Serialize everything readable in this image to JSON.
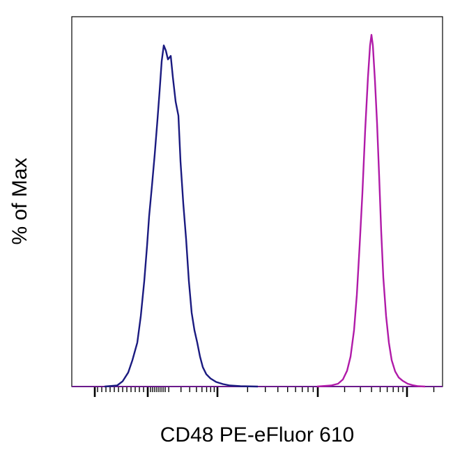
{
  "chart_data": {
    "type": "line",
    "title": "",
    "xlabel": "CD48 PE-eFluor 610",
    "ylabel": "% of Max",
    "x_scale": "biexponential",
    "x_ticks_labeled": false,
    "y_ticks_labeled": false,
    "grid": false,
    "legend": "none",
    "series": [
      {
        "color": "#1a1a80",
        "points": [
          [
            150,
            0
          ],
          [
            168,
            0.3
          ],
          [
            176,
            1.5
          ],
          [
            184,
            4
          ],
          [
            190,
            7.5
          ],
          [
            197,
            12.5
          ],
          [
            202,
            20
          ],
          [
            207,
            30
          ],
          [
            211,
            40
          ],
          [
            214,
            48.5
          ],
          [
            218,
            57
          ],
          [
            222,
            66
          ],
          [
            226,
            76
          ],
          [
            229,
            84
          ],
          [
            232,
            92.5
          ],
          [
            235,
            97
          ],
          [
            238,
            95.5
          ],
          [
            241,
            93
          ],
          [
            245,
            94
          ],
          [
            248,
            88
          ],
          [
            252,
            81
          ],
          [
            256,
            77
          ],
          [
            259,
            64
          ],
          [
            263,
            52
          ],
          [
            267,
            42
          ],
          [
            271,
            30
          ],
          [
            275,
            21
          ],
          [
            279,
            16
          ],
          [
            283,
            12.5
          ],
          [
            287,
            8.5
          ],
          [
            291,
            5.5
          ],
          [
            296,
            3.5
          ],
          [
            302,
            2.3
          ],
          [
            310,
            1.3
          ],
          [
            320,
            0.7
          ],
          [
            330,
            0.3
          ],
          [
            345,
            0.1
          ],
          [
            370,
            0
          ]
        ]
      },
      {
        "color": "#b01aa8",
        "points": [
          [
            455,
            0
          ],
          [
            475,
            0.3
          ],
          [
            485,
            0.8
          ],
          [
            492,
            2
          ],
          [
            498,
            4.5
          ],
          [
            503,
            8.5
          ],
          [
            508,
            16
          ],
          [
            512,
            26
          ],
          [
            516,
            40
          ],
          [
            520,
            55
          ],
          [
            524,
            73
          ],
          [
            528,
            88
          ],
          [
            531,
            97
          ],
          [
            533,
            100
          ],
          [
            535,
            97
          ],
          [
            538,
            87
          ],
          [
            541,
            75
          ],
          [
            544,
            60
          ],
          [
            547,
            44
          ],
          [
            550,
            31
          ],
          [
            554,
            20
          ],
          [
            558,
            12.5
          ],
          [
            562,
            7.5
          ],
          [
            567,
            4.3
          ],
          [
            572,
            2.6
          ],
          [
            578,
            1.6
          ],
          [
            585,
            0.8
          ],
          [
            592,
            0.4
          ],
          [
            600,
            0.1
          ],
          [
            610,
            0
          ]
        ]
      }
    ]
  }
}
